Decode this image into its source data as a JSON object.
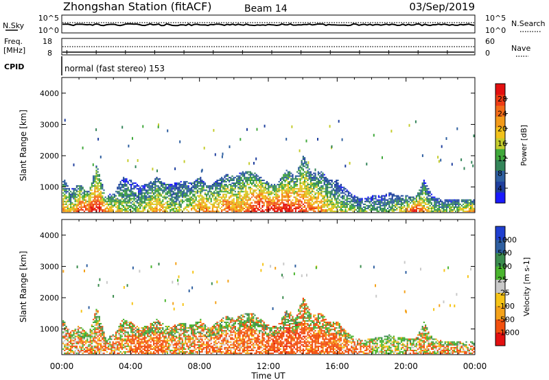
{
  "header": {
    "station": "Zhongshan Station (fitACF)",
    "beam": "Beam 14",
    "date": "03/Sep/2019"
  },
  "status_panels": {
    "nsky": {
      "label": "N.Sky",
      "ticks": [
        "10^5",
        "10^0"
      ],
      "right_label": "N.Search",
      "right_ticks": [
        "10^5",
        "10^0"
      ]
    },
    "freq": {
      "label_lines": [
        "Freq.",
        "[MHz]"
      ],
      "ticks": [
        "18",
        "8"
      ],
      "right_label": "Nave",
      "right_ticks": [
        "60",
        "0"
      ]
    },
    "cpid": {
      "label": "CPID",
      "value": "normal (fast stereo) 153"
    }
  },
  "colors": {
    "power": [
      "#1a1aff",
      "#1f3f9e",
      "#2e5fa0",
      "#34855a",
      "#3fa83a",
      "#c4cc2c",
      "#f2c21b",
      "#f39a19",
      "#f26b18",
      "#ee3c14",
      "#e31010"
    ],
    "velocity": [
      "#e31010",
      "#f2500f",
      "#f4a21a",
      "#f6c417",
      "#c9c9c9",
      "#4ab52e",
      "#3b8c4e",
      "#2e5fa0",
      "#1f3fd0"
    ]
  },
  "chart_data": [
    {
      "type": "heatmap",
      "panel": "power",
      "title": "",
      "xlabel": "Time UT",
      "ylabel": "Slant Range [km]",
      "x_ticks": [
        "00:00",
        "04:00",
        "08:00",
        "12:00",
        "16:00",
        "20:00",
        "00:00"
      ],
      "xlim": [
        0,
        24
      ],
      "y_ticks": [
        1000,
        2000,
        3000,
        4000
      ],
      "ylim": [
        180,
        4500
      ],
      "colorbar": {
        "label": "Power [dB]",
        "ticks": [
          "4",
          "8",
          "12",
          "16",
          "20",
          "24",
          "28"
        ],
        "range": [
          0,
          30
        ]
      },
      "x_hours": [
        0,
        0.5,
        1,
        1.5,
        2,
        2.5,
        3,
        3.5,
        4,
        4.5,
        5,
        5.5,
        6,
        6.5,
        7,
        7.5,
        8,
        8.5,
        9,
        9.5,
        10,
        10.5,
        11,
        11.5,
        12,
        12.5,
        13,
        13.5,
        14,
        14.5,
        15,
        15.5,
        16,
        16.5,
        17,
        17.5,
        18,
        18.5,
        19,
        19.5,
        20,
        20.5,
        21,
        21.5,
        22,
        22.5,
        23,
        23.5
      ],
      "extent_top_km": [
        1300,
        900,
        1100,
        800,
        1700,
        700,
        800,
        1300,
        1200,
        1000,
        1100,
        1300,
        1100,
        1100,
        1200,
        1100,
        1300,
        1000,
        1200,
        1400,
        1300,
        1500,
        1500,
        1300,
        1100,
        1100,
        1600,
        1300,
        2000,
        1400,
        1500,
        1200,
        1200,
        900,
        700,
        600,
        700,
        700,
        800,
        700,
        700,
        650,
        1200,
        700,
        600,
        600,
        600,
        600
      ],
      "peak_power_db": [
        22,
        16,
        27,
        26,
        30,
        24,
        18,
        16,
        14,
        14,
        18,
        22,
        18,
        14,
        16,
        18,
        22,
        22,
        20,
        26,
        22,
        22,
        28,
        30,
        30,
        30,
        28,
        28,
        26,
        24,
        22,
        18,
        16,
        14,
        14,
        12,
        12,
        12,
        12,
        16,
        20,
        30,
        20,
        14,
        14,
        14,
        14,
        20
      ]
    },
    {
      "type": "heatmap",
      "panel": "velocity",
      "title": "",
      "xlabel": "Time UT",
      "ylabel": "Slant Range [km]",
      "x_ticks": [
        "00:00",
        "04:00",
        "08:00",
        "12:00",
        "16:00",
        "20:00",
        "00:00"
      ],
      "xlim": [
        0,
        24
      ],
      "y_ticks": [
        1000,
        2000,
        3000,
        4000
      ],
      "ylim": [
        180,
        4500
      ],
      "colorbar": {
        "label": "Velocity [m s-1]",
        "ticks": [
          "-1000",
          "-500",
          "-100",
          "-25",
          "25",
          "100",
          "500",
          "1000"
        ],
        "range": [
          -1000,
          1000
        ]
      },
      "x_hours": [
        0,
        2,
        4,
        6,
        8,
        10,
        12,
        14,
        16,
        18,
        20,
        22
      ],
      "typical_velocity": [
        -80,
        -100,
        -250,
        -80,
        -150,
        -200,
        -300,
        -250,
        -150,
        120,
        -50,
        -40
      ]
    }
  ]
}
